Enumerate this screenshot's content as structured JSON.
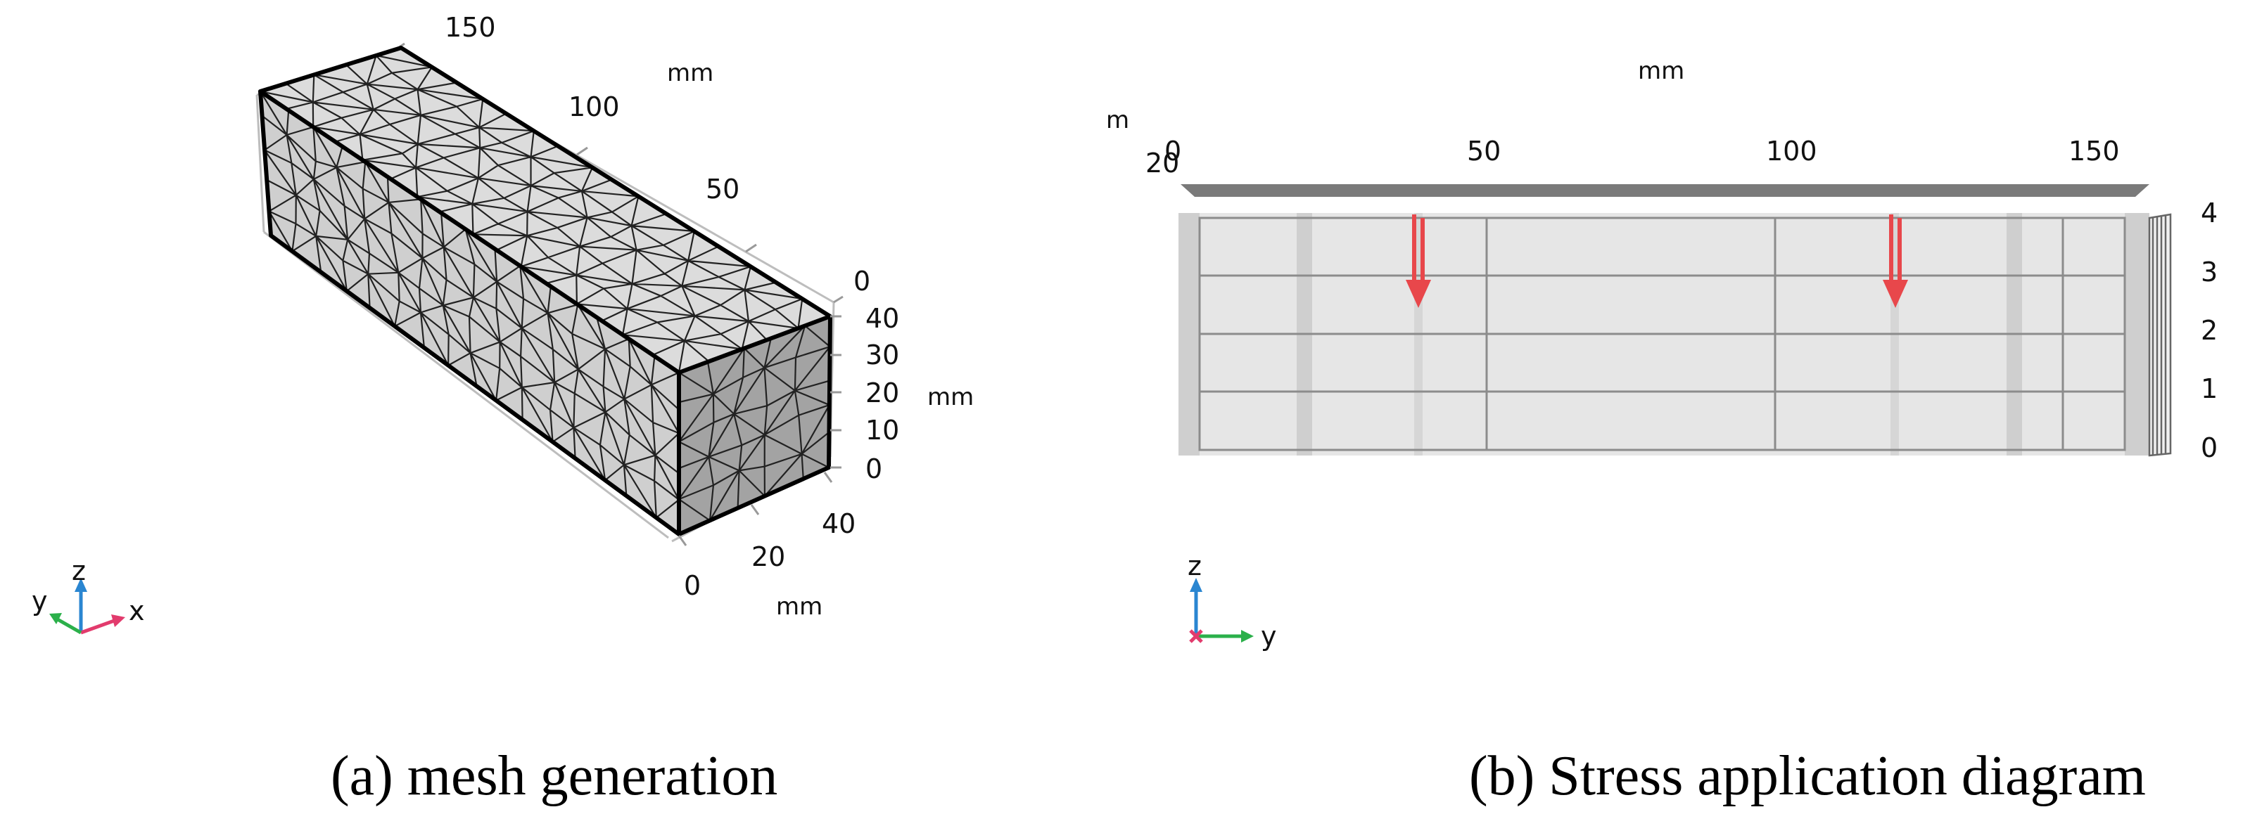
{
  "panel_a": {
    "caption": "(a) mesh generation",
    "top_axis": {
      "unit": "mm",
      "ticks": [
        "150",
        "100",
        "50",
        "0"
      ]
    },
    "right_axis": {
      "unit": "mm",
      "ticks": [
        "40",
        "30",
        "20",
        "10",
        "0"
      ]
    },
    "bottom_axis": {
      "unit": "mm",
      "ticks": [
        "40",
        "20",
        "0"
      ]
    },
    "triad": {
      "x": "x",
      "y": "y",
      "z": "z"
    },
    "colors": {
      "mesh_face_light": "#d9d9d9",
      "mesh_face_dark": "#9d9d9d",
      "mesh_line": "#1a1a1a"
    }
  },
  "panel_b": {
    "caption": "(b) Stress application diagram",
    "top_axis": {
      "unit": "mm",
      "ticks": [
        "0",
        "50",
        "100",
        "150"
      ]
    },
    "left_partial": {
      "unit_fragment": "m",
      "tick_fragment": "20"
    },
    "right_axis_fragments": [
      "4",
      "3",
      "2",
      "1",
      "0"
    ],
    "triad": {
      "z": "z",
      "y": "y"
    },
    "load_arrow_count": 2,
    "colors": {
      "beam": "#e6e6e6",
      "grid": "#8c8c8c",
      "arrow": "#e8474b"
    }
  }
}
